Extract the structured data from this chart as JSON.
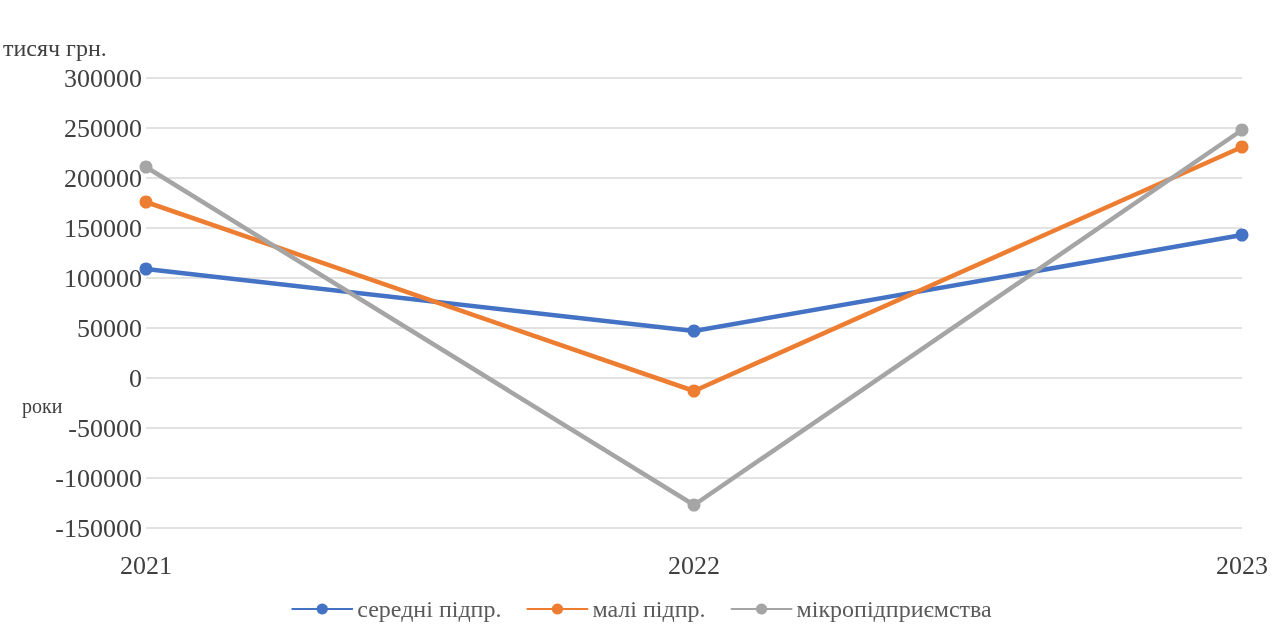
{
  "chart_data": {
    "type": "line",
    "ylabel": "тисяч грн.",
    "xlabel": "роки",
    "categories": [
      "2021",
      "2022",
      "2023"
    ],
    "series": [
      {
        "name": "середні підпр.",
        "color": "#4472c4",
        "values": [
          109000,
          47000,
          143000
        ]
      },
      {
        "name": "малі підпр.",
        "color": "#ed7d31",
        "values": [
          176000,
          -13000,
          231000
        ]
      },
      {
        "name": "мікропідприємства",
        "color": "#a5a5a5",
        "values": [
          211000,
          -127000,
          248000
        ]
      }
    ],
    "ylim": [
      -150000,
      300000
    ],
    "yticks": [
      -150000,
      -100000,
      -50000,
      0,
      50000,
      100000,
      150000,
      200000,
      250000,
      300000
    ],
    "grid": "y",
    "legend": "bottom",
    "marker": "circle",
    "line_style": "solid"
  }
}
